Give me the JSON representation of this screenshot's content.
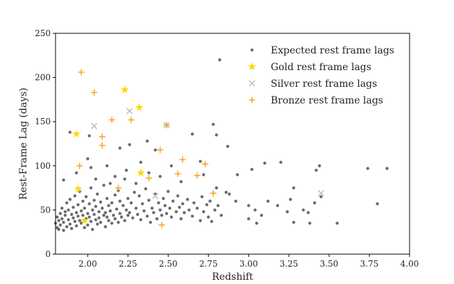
{
  "chart_data": {
    "type": "scatter",
    "xlabel": "Redshift",
    "ylabel": "Rest-Frame Lag (days)",
    "xlim": [
      1.8,
      4.0
    ],
    "ylim": [
      0,
      250
    ],
    "xticks": [
      "2.00",
      "2.25",
      "2.50",
      "2.75",
      "3.00",
      "3.25",
      "3.50",
      "3.75",
      "4.00"
    ],
    "yticks": [
      "0",
      "50",
      "100",
      "150",
      "200",
      "250"
    ],
    "grid": false,
    "legend_position": "top-right",
    "series": [
      {
        "name": "Expected rest frame lags",
        "marker": "dot",
        "color": "#3a3a3a",
        "points": [
          [
            1.8,
            35
          ],
          [
            1.81,
            30
          ],
          [
            1.81,
            42
          ],
          [
            1.82,
            38
          ],
          [
            1.82,
            28
          ],
          [
            1.83,
            33
          ],
          [
            1.83,
            46
          ],
          [
            1.84,
            40
          ],
          [
            1.84,
            52
          ],
          [
            1.85,
            36
          ],
          [
            1.85,
            27
          ],
          [
            1.86,
            48
          ],
          [
            1.86,
            44
          ],
          [
            1.87,
            31
          ],
          [
            1.87,
            58
          ],
          [
            1.88,
            39
          ],
          [
            1.88,
            50
          ],
          [
            1.89,
            34
          ],
          [
            1.89,
            62
          ],
          [
            1.9,
            45
          ],
          [
            1.9,
            29
          ],
          [
            1.91,
            53
          ],
          [
            1.91,
            41
          ],
          [
            1.92,
            37
          ],
          [
            1.92,
            66
          ],
          [
            1.93,
            47
          ],
          [
            1.93,
            32
          ],
          [
            1.94,
            56
          ],
          [
            1.94,
            43
          ],
          [
            1.95,
            38
          ],
          [
            1.95,
            71
          ],
          [
            1.96,
            49
          ],
          [
            1.96,
            35
          ],
          [
            1.97,
            60
          ],
          [
            1.97,
            44
          ],
          [
            1.98,
            30
          ],
          [
            1.98,
            52
          ],
          [
            1.99,
            40
          ],
          [
            1.99,
            65
          ],
          [
            2.0,
            46
          ],
          [
            2.0,
            33
          ],
          [
            2.01,
            57
          ],
          [
            2.01,
            42
          ],
          [
            2.02,
            37
          ],
          [
            2.02,
            75
          ],
          [
            2.03,
            50
          ],
          [
            2.03,
            28
          ],
          [
            2.04,
            61
          ],
          [
            2.04,
            45
          ],
          [
            2.05,
            39
          ],
          [
            2.05,
            54
          ],
          [
            2.06,
            34
          ],
          [
            2.06,
            68
          ],
          [
            2.07,
            48
          ],
          [
            2.07,
            41
          ],
          [
            2.08,
            59
          ],
          [
            2.08,
            36
          ],
          [
            2.09,
            52
          ],
          [
            2.1,
            44
          ],
          [
            2.1,
            78
          ],
          [
            2.11,
            47
          ],
          [
            2.11,
            31
          ],
          [
            2.12,
            63
          ],
          [
            2.12,
            42
          ],
          [
            2.13,
            55
          ],
          [
            2.13,
            38
          ],
          [
            2.14,
            80
          ],
          [
            2.14,
            49
          ],
          [
            2.15,
            35
          ],
          [
            2.15,
            58
          ],
          [
            2.16,
            44
          ],
          [
            2.17,
            67
          ],
          [
            2.17,
            40
          ],
          [
            2.18,
            51
          ],
          [
            2.19,
            36
          ],
          [
            2.19,
            72
          ],
          [
            2.2,
            46
          ],
          [
            2.2,
            60
          ],
          [
            2.21,
            42
          ],
          [
            2.22,
            55
          ],
          [
            2.23,
            38
          ],
          [
            2.23,
            85
          ],
          [
            2.24,
            50
          ],
          [
            2.25,
            44
          ],
          [
            2.25,
            63
          ],
          [
            2.26,
            47
          ],
          [
            2.27,
            58
          ],
          [
            2.28,
            41
          ],
          [
            2.29,
            70
          ],
          [
            2.3,
            52
          ],
          [
            2.31,
            45
          ],
          [
            2.32,
            66
          ],
          [
            2.33,
            39
          ],
          [
            2.34,
            57
          ],
          [
            2.35,
            49
          ],
          [
            2.36,
            74
          ],
          [
            2.37,
            43
          ],
          [
            2.38,
            61
          ],
          [
            2.39,
            36
          ],
          [
            2.4,
            52
          ],
          [
            2.41,
            47
          ],
          [
            2.42,
            68
          ],
          [
            2.43,
            40
          ],
          [
            2.44,
            58
          ],
          [
            2.45,
            50
          ],
          [
            2.46,
            44
          ],
          [
            2.47,
            63
          ],
          [
            2.48,
            55
          ],
          [
            2.49,
            46
          ],
          [
            2.5,
            71
          ],
          [
            2.51,
            52
          ],
          [
            2.52,
            42
          ],
          [
            2.53,
            60
          ],
          [
            2.55,
            48
          ],
          [
            2.56,
            66
          ],
          [
            2.57,
            53
          ],
          [
            2.58,
            40
          ],
          [
            2.59,
            57
          ],
          [
            2.6,
            47
          ],
          [
            2.62,
            62
          ],
          [
            2.63,
            50
          ],
          [
            2.65,
            43
          ],
          [
            2.66,
            58
          ],
          [
            2.68,
            52
          ],
          [
            2.7,
            38
          ],
          [
            2.71,
            65
          ],
          [
            2.72,
            48
          ],
          [
            2.74,
            56
          ],
          [
            2.75,
            42
          ],
          [
            2.76,
            60
          ],
          [
            2.77,
            37
          ],
          [
            2.79,
            50
          ],
          [
            2.8,
            75
          ],
          [
            2.81,
            55
          ],
          [
            2.83,
            44
          ],
          [
            2.86,
            70
          ],
          [
            2.88,
            68
          ],
          [
            2.92,
            60
          ],
          [
            3.0,
            55
          ],
          [
            3.0,
            40
          ],
          [
            3.04,
            50
          ],
          [
            3.05,
            35
          ],
          [
            3.08,
            44
          ],
          [
            3.12,
            60
          ],
          [
            3.18,
            55
          ],
          [
            3.24,
            48
          ],
          [
            3.26,
            62
          ],
          [
            3.28,
            36
          ],
          [
            3.34,
            50
          ],
          [
            3.37,
            47
          ],
          [
            3.38,
            35
          ],
          [
            3.41,
            58
          ],
          [
            3.45,
            65
          ],
          [
            3.55,
            35
          ],
          [
            3.8,
            57
          ],
          [
            1.85,
            84
          ],
          [
            1.93,
            92
          ],
          [
            2.0,
            108
          ],
          [
            2.02,
            98
          ],
          [
            2.05,
            85
          ],
          [
            2.12,
            100
          ],
          [
            2.17,
            88
          ],
          [
            2.2,
            120
          ],
          [
            2.24,
            95
          ],
          [
            2.3,
            80
          ],
          [
            2.33,
            104
          ],
          [
            2.38,
            92
          ],
          [
            2.42,
            118
          ],
          [
            2.45,
            88
          ],
          [
            2.52,
            100
          ],
          [
            2.58,
            82
          ],
          [
            2.65,
            136
          ],
          [
            2.7,
            105
          ],
          [
            2.72,
            90
          ],
          [
            2.8,
            135
          ],
          [
            2.87,
            122
          ],
          [
            2.93,
            90
          ],
          [
            3.02,
            96
          ],
          [
            3.1,
            103
          ],
          [
            3.2,
            104
          ],
          [
            3.28,
            75
          ],
          [
            3.42,
            95
          ],
          [
            3.44,
            100
          ],
          [
            3.74,
            97
          ],
          [
            3.86,
            97
          ],
          [
            1.89,
            138
          ],
          [
            2.01,
            134
          ],
          [
            2.26,
            124
          ],
          [
            2.37,
            128
          ],
          [
            2.78,
            147
          ],
          [
            2.82,
            220
          ]
        ]
      },
      {
        "name": "Gold rest frame lags",
        "marker": "star",
        "color": "#ffd700",
        "points": [
          [
            1.93,
            136
          ],
          [
            1.94,
            74
          ],
          [
            1.98,
            38
          ],
          [
            2.23,
            186
          ],
          [
            2.32,
            166
          ],
          [
            2.33,
            92
          ]
        ]
      },
      {
        "name": "Silver rest frame lags",
        "marker": "x",
        "color": "#bdbdbd",
        "points": [
          [
            2.04,
            145
          ],
          [
            2.26,
            162
          ],
          [
            2.42,
            66
          ],
          [
            2.49,
            146
          ],
          [
            3.45,
            69
          ]
        ]
      },
      {
        "name": "Bronze rest frame lags",
        "marker": "plus",
        "color": "#ffa020",
        "points": [
          [
            1.96,
            206
          ],
          [
            2.04,
            183
          ],
          [
            1.95,
            100
          ],
          [
            2.09,
            133
          ],
          [
            2.09,
            123
          ],
          [
            2.15,
            152
          ],
          [
            2.19,
            75
          ],
          [
            2.27,
            152
          ],
          [
            2.38,
            86
          ],
          [
            2.45,
            118
          ],
          [
            2.49,
            146
          ],
          [
            2.46,
            33
          ],
          [
            2.56,
            91
          ],
          [
            2.59,
            107
          ],
          [
            2.68,
            89
          ],
          [
            2.73,
            102
          ],
          [
            2.78,
            69
          ]
        ]
      }
    ]
  }
}
